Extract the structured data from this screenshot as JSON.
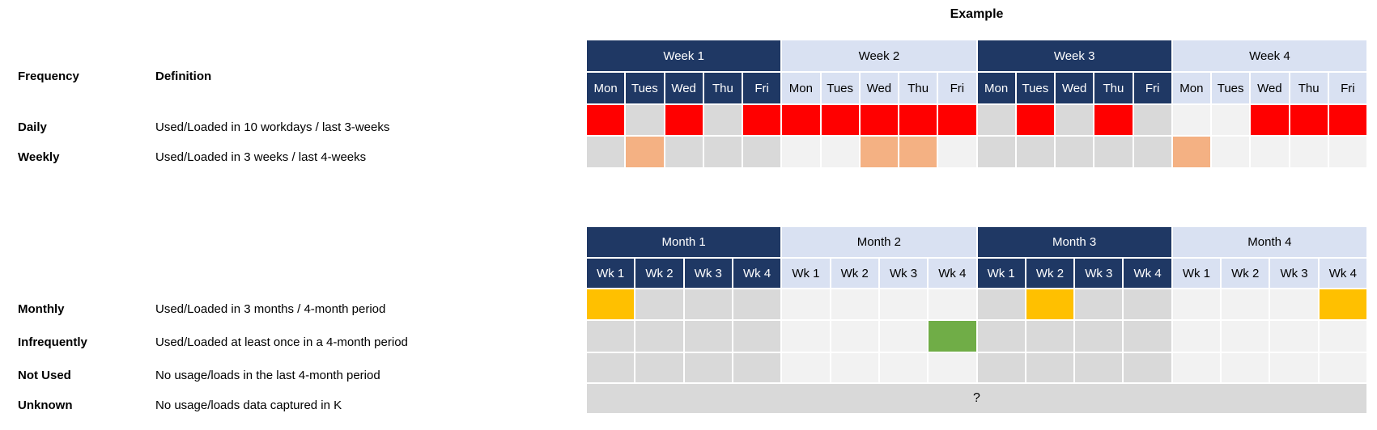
{
  "title": "Example",
  "colors": {
    "header_dark": "#1F3864",
    "header_light": "#D9E1F2",
    "cell_dark_base": "#D9D9D9",
    "cell_light_base": "#F2F2F2",
    "red": "#FF0000",
    "orange": "#F4B183",
    "yellow": "#FFC000",
    "green": "#70AD47",
    "unknown_bg": "#D9D9D9"
  },
  "legend": {
    "header": {
      "frequency": "Frequency",
      "definition": "Definition"
    },
    "rows": [
      {
        "id": "daily",
        "label": "Daily",
        "definition": "Used/Loaded in 10 workdays / last 3-weeks"
      },
      {
        "id": "weekly",
        "label": "Weekly",
        "definition": "Used/Loaded in 3 weeks / last 4-weeks"
      },
      {
        "id": "monthly",
        "label": "Monthly",
        "definition": "Used/Loaded in 3 months / 4-month period"
      },
      {
        "id": "infrequently",
        "label": "Infrequently",
        "definition": "Used/Loaded at least once in a 4-month period"
      },
      {
        "id": "not-used",
        "label": "Not Used",
        "definition": "No usage/loads in the last 4-month period"
      },
      {
        "id": "unknown",
        "label": "Unknown",
        "definition": "No usage/loads data captured in K"
      }
    ]
  },
  "week_table": {
    "groups": [
      {
        "label": "Week 1",
        "theme": "dark"
      },
      {
        "label": "Week 2",
        "theme": "light"
      },
      {
        "label": "Week 3",
        "theme": "dark"
      },
      {
        "label": "Week 4",
        "theme": "light"
      }
    ],
    "sub_labels": [
      "Mon",
      "Tues",
      "Wed",
      "Thu",
      "Fri"
    ],
    "rows": [
      {
        "id": "daily",
        "cells": [
          "red",
          null,
          "red",
          null,
          "red",
          "red",
          "red",
          "red",
          "red",
          "red",
          null,
          "red",
          null,
          "red",
          null,
          null,
          null,
          "red",
          "red",
          "red"
        ]
      },
      {
        "id": "weekly",
        "cells": [
          null,
          "orange",
          null,
          null,
          null,
          null,
          null,
          "orange",
          "orange",
          null,
          null,
          null,
          null,
          null,
          null,
          "orange",
          null,
          null,
          null,
          null
        ]
      }
    ]
  },
  "month_table": {
    "groups": [
      {
        "label": "Month 1",
        "theme": "dark"
      },
      {
        "label": "Month 2",
        "theme": "light"
      },
      {
        "label": "Month 3",
        "theme": "dark"
      },
      {
        "label": "Month 4",
        "theme": "light"
      }
    ],
    "sub_labels": [
      "Wk 1",
      "Wk 2",
      "Wk 3",
      "Wk 4"
    ],
    "rows": [
      {
        "id": "monthly",
        "cells": [
          "yellow",
          null,
          null,
          null,
          null,
          null,
          null,
          null,
          null,
          "yellow",
          null,
          null,
          null,
          null,
          null,
          "yellow"
        ]
      },
      {
        "id": "infrequently",
        "cells": [
          null,
          null,
          null,
          null,
          null,
          null,
          null,
          "green",
          null,
          null,
          null,
          null,
          null,
          null,
          null,
          null
        ]
      },
      {
        "id": "not-used",
        "cells": [
          null,
          null,
          null,
          null,
          null,
          null,
          null,
          null,
          null,
          null,
          null,
          null,
          null,
          null,
          null,
          null
        ]
      }
    ],
    "unknown_row": {
      "label": "?"
    }
  }
}
